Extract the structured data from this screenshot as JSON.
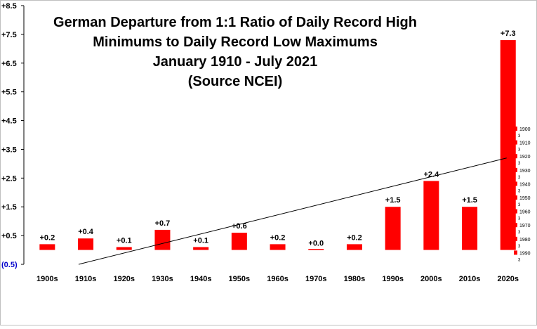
{
  "chart_data": {
    "type": "bar",
    "title_lines": [
      "German Departure from 1:1 Ratio of Daily Record High",
      "Minimums to Daily Record Low Maximums",
      "January 1910 - July 2021",
      "(Source NCEI)"
    ],
    "categories": [
      "1900s",
      "1910s",
      "1920s",
      "1930s",
      "1940s",
      "1950s",
      "1960s",
      "1970s",
      "1980s",
      "1990s",
      "2000s",
      "2010s",
      "2020s"
    ],
    "values": [
      0.2,
      0.4,
      0.1,
      0.7,
      0.1,
      0.6,
      0.2,
      0.0,
      0.2,
      1.5,
      2.4,
      1.5,
      7.3
    ],
    "data_labels": [
      "+0.2",
      "+0.4",
      "+0.1",
      "+0.7",
      "+0.1",
      "+0.6",
      "+0.2",
      "+0.0",
      "+0.2",
      "+1.5",
      "+2.4",
      "+1.5",
      "+7.3"
    ],
    "y_tick_labels": [
      "+8.5",
      "+7.5",
      "+6.5",
      "+5.5",
      "+4.5",
      "+3.5",
      "+2.5",
      "+1.5",
      "+0.5",
      "(0.5)"
    ],
    "y_tick_values": [
      8.5,
      7.5,
      6.5,
      5.5,
      4.5,
      3.5,
      2.5,
      1.5,
      0.5,
      -0.5
    ],
    "ylim": [
      -0.5,
      8.5
    ],
    "trendline": {
      "type": "linear",
      "start_value": -0.5,
      "end_value": 3.2
    },
    "bar_color": "#ff0000",
    "negative_label_color": "#0000cc",
    "inset_legend": {
      "decades": [
        "1900",
        "1910",
        "1920",
        "1930",
        "1940",
        "1950",
        "1960",
        "1970",
        "1980",
        "1990"
      ],
      "marker": "3"
    },
    "grid": false
  }
}
